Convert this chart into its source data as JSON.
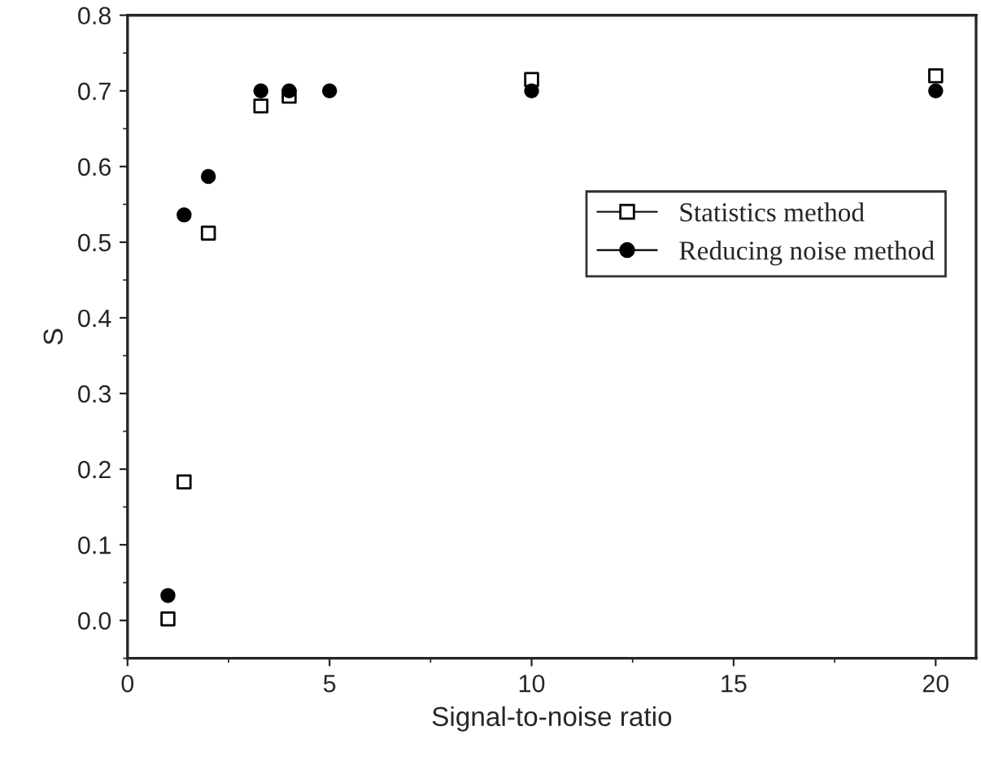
{
  "chart_data": {
    "type": "scatter",
    "xlabel": "Signal-to-noise ratio",
    "ylabel": "S",
    "xlim": [
      0,
      21
    ],
    "xticks": [
      0,
      5,
      10,
      15,
      20
    ],
    "ylim": [
      -0.05,
      0.8
    ],
    "yticks": [
      {
        "value": 0,
        "label": "0.0"
      },
      0.1,
      0.2,
      0.3,
      0.4,
      0.5,
      0.6,
      0.7,
      0.8
    ],
    "grid": false,
    "legend": "right",
    "series": [
      {
        "name": "Statistics method",
        "color": "#000000",
        "marker": "square",
        "x": [
          1,
          1.4,
          2,
          3.3,
          4,
          5,
          10,
          20
        ],
        "values": [
          0.002,
          0.183,
          0.512,
          0.68,
          0.693,
          null,
          0.715,
          0.72
        ]
      },
      {
        "name": "Reducing noise method",
        "color": "#000000",
        "marker": "circle",
        "x": [
          1,
          1.4,
          2,
          3.3,
          4,
          5,
          10,
          20
        ],
        "values": [
          0.033,
          0.536,
          0.587,
          0.7,
          0.7,
          0.7,
          0.7,
          0.7
        ]
      }
    ]
  }
}
